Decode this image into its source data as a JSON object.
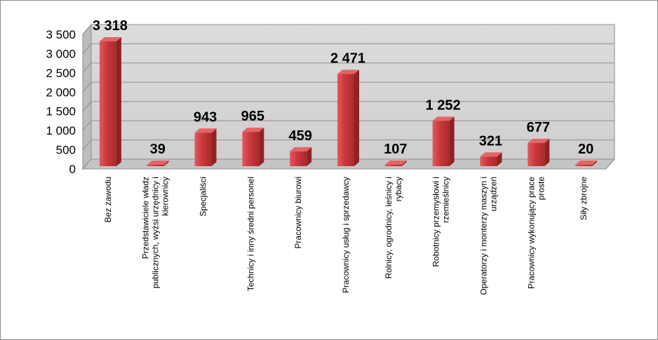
{
  "chart_data": {
    "type": "bar",
    "title": "",
    "xlabel": "",
    "ylabel": "",
    "ylim": [
      0,
      3500
    ],
    "y_ticks": [
      "0",
      "500",
      "1 000",
      "1 500",
      "2 000",
      "2 500",
      "3 000",
      "3 500"
    ],
    "y_tick_values": [
      0,
      500,
      1000,
      1500,
      2000,
      2500,
      3000,
      3500
    ],
    "grid": true,
    "legend": "none",
    "bar_color": "#c0373a",
    "categories": [
      [
        "Bez zawodu"
      ],
      [
        "Przedstawiciele władz",
        "publicznych, wyżsi urzędnicy i",
        "kierownicy"
      ],
      [
        "Specjaliści"
      ],
      [
        "Technicy i inny średni personel"
      ],
      [
        "Pracownicy biurowi"
      ],
      [
        "Pracownicy usług i sprzedawcy"
      ],
      [
        "Rolnicy, ogrodnicy, leśnicy i",
        "rybacy"
      ],
      [
        "Robotnicy przemysłowi i",
        "rzemieślnicy"
      ],
      [
        "Operatorzy i monterzy maszyn i",
        "urządzeń"
      ],
      [
        "Pracownicy wykonujący prace",
        "proste"
      ],
      [
        "Siły zbrojne"
      ]
    ],
    "values": [
      3318,
      39,
      943,
      965,
      459,
      2471,
      107,
      1252,
      321,
      677,
      20
    ],
    "value_labels": [
      "3 318",
      "39",
      "943",
      "965",
      "459",
      "2 471",
      "107",
      "1 252",
      "321",
      "677",
      "20"
    ]
  }
}
